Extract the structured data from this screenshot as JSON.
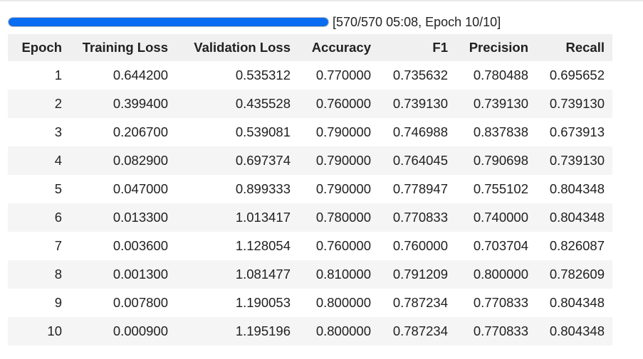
{
  "progress": {
    "fraction": 1.0,
    "text": "[570/570 05:08, Epoch 10/10]"
  },
  "table": {
    "columns": [
      "Epoch",
      "Training Loss",
      "Validation Loss",
      "Accuracy",
      "F1",
      "Precision",
      "Recall"
    ],
    "rows": [
      [
        "1",
        "0.644200",
        "0.535312",
        "0.770000",
        "0.735632",
        "0.780488",
        "0.695652"
      ],
      [
        "2",
        "0.399400",
        "0.435528",
        "0.760000",
        "0.739130",
        "0.739130",
        "0.739130"
      ],
      [
        "3",
        "0.206700",
        "0.539081",
        "0.790000",
        "0.746988",
        "0.837838",
        "0.673913"
      ],
      [
        "4",
        "0.082900",
        "0.697374",
        "0.790000",
        "0.764045",
        "0.790698",
        "0.739130"
      ],
      [
        "5",
        "0.047000",
        "0.899333",
        "0.790000",
        "0.778947",
        "0.755102",
        "0.804348"
      ],
      [
        "6",
        "0.013300",
        "1.013417",
        "0.780000",
        "0.770833",
        "0.740000",
        "0.804348"
      ],
      [
        "7",
        "0.003600",
        "1.128054",
        "0.760000",
        "0.760000",
        "0.703704",
        "0.826087"
      ],
      [
        "8",
        "0.001300",
        "1.081477",
        "0.810000",
        "0.791209",
        "0.800000",
        "0.782609"
      ],
      [
        "9",
        "0.007800",
        "1.190053",
        "0.800000",
        "0.787234",
        "0.770833",
        "0.804348"
      ],
      [
        "10",
        "0.000900",
        "1.195196",
        "0.800000",
        "0.787234",
        "0.770833",
        "0.804348"
      ]
    ]
  },
  "colors": {
    "progress_fill": "#0a6cf0",
    "header_bg": "#f0f0f0",
    "stripe_bg": "#f5f5f5"
  }
}
